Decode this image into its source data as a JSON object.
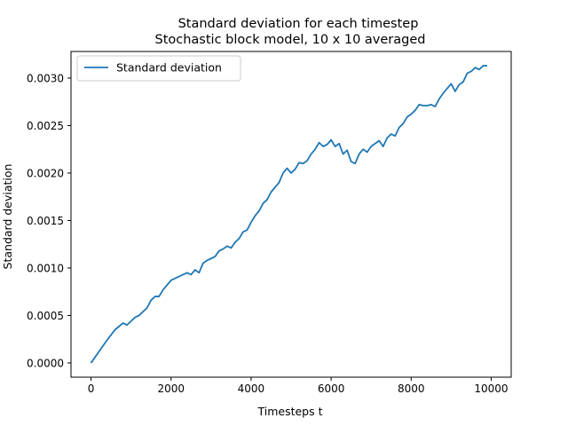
{
  "chart_data": {
    "type": "line",
    "title": "Standard deviation for each timestep",
    "subtitle": "Stochastic block model, 10 x 10 averaged",
    "xlabel": "Timesteps t",
    "ylabel": "Standard deviation",
    "xlim": [
      -500,
      10500
    ],
    "ylim": [
      -0.00015,
      0.00328
    ],
    "xticks": [
      0,
      2000,
      4000,
      6000,
      8000,
      10000
    ],
    "xtick_labels": [
      "0",
      "2000",
      "4000",
      "6000",
      "8000",
      "10000"
    ],
    "yticks": [
      0,
      0.0005,
      0.001,
      0.0015,
      0.002,
      0.0025,
      0.003
    ],
    "ytick_labels": [
      "0.0000",
      "0.0005",
      "0.0010",
      "0.0015",
      "0.0020",
      "0.0025",
      "0.0030"
    ],
    "grid": false,
    "legend_position": "top-left",
    "series": [
      {
        "name": "Standard deviation",
        "color": "#1f77b4",
        "x": [
          0,
          200,
          400,
          600,
          800,
          900,
          1000,
          1100,
          1200,
          1400,
          1500,
          1600,
          1700,
          1800,
          2000,
          2100,
          2200,
          2400,
          2500,
          2600,
          2700,
          2800,
          2900,
          3000,
          3100,
          3200,
          3300,
          3400,
          3500,
          3600,
          3700,
          3800,
          3900,
          4000,
          4100,
          4200,
          4300,
          4400,
          4500,
          4600,
          4700,
          4800,
          4900,
          5000,
          5100,
          5200,
          5300,
          5400,
          5500,
          5600,
          5700,
          5800,
          5900,
          6000,
          6100,
          6200,
          6300,
          6400,
          6500,
          6600,
          6700,
          6800,
          6900,
          7000,
          7100,
          7200,
          7300,
          7400,
          7500,
          7600,
          7700,
          7800,
          7900,
          8000,
          8100,
          8200,
          8300,
          8400,
          8500,
          8600,
          8700,
          8800,
          8900,
          9000,
          9100,
          9200,
          9300,
          9400,
          9500,
          9600,
          9700,
          9800,
          9900
        ],
        "values": [
          0.0,
          0.00012,
          0.00024,
          0.00035,
          0.00042,
          0.0004,
          0.00044,
          0.00048,
          0.0005,
          0.00058,
          0.00066,
          0.0007,
          0.0007,
          0.00077,
          0.00087,
          0.00089,
          0.00091,
          0.00095,
          0.00093,
          0.00098,
          0.00095,
          0.00105,
          0.00108,
          0.0011,
          0.00112,
          0.00118,
          0.0012,
          0.00123,
          0.00121,
          0.00127,
          0.00131,
          0.00138,
          0.0014,
          0.00148,
          0.00155,
          0.0016,
          0.00168,
          0.00172,
          0.0018,
          0.00185,
          0.0019,
          0.002,
          0.00205,
          0.002,
          0.00204,
          0.00211,
          0.0021,
          0.00213,
          0.0022,
          0.00225,
          0.00232,
          0.00228,
          0.0023,
          0.00235,
          0.00228,
          0.00231,
          0.0022,
          0.00224,
          0.00212,
          0.0021,
          0.0022,
          0.00225,
          0.00222,
          0.00228,
          0.00231,
          0.00234,
          0.00228,
          0.00237,
          0.00241,
          0.00239,
          0.00248,
          0.00252,
          0.00259,
          0.00262,
          0.00266,
          0.00272,
          0.00271,
          0.00271,
          0.00272,
          0.0027,
          0.00278,
          0.00284,
          0.00289,
          0.00294,
          0.00286,
          0.00293,
          0.00296,
          0.00305,
          0.00307,
          0.00311,
          0.00309,
          0.00313,
          0.00313
        ]
      }
    ]
  }
}
